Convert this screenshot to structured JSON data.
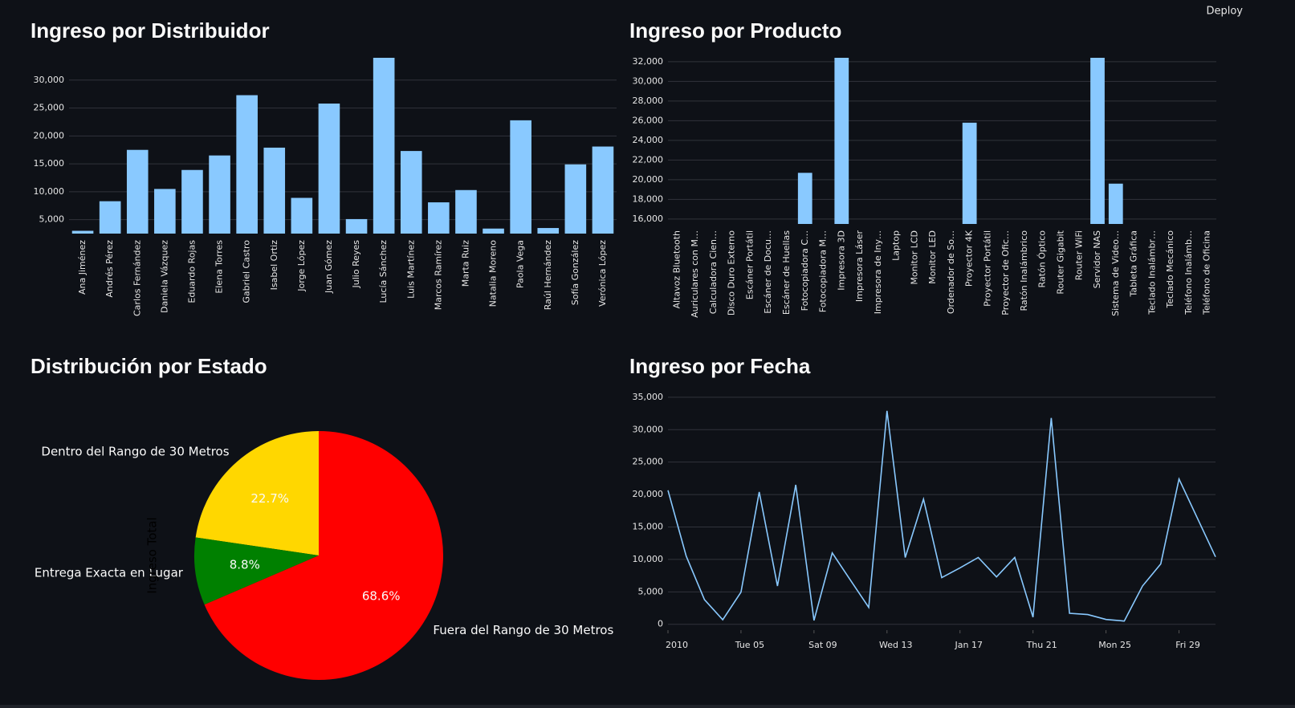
{
  "header": {
    "deploy": "Deploy"
  },
  "chart_data": [
    {
      "type": "bar",
      "title": "Ingreso por Distribuidor",
      "color": "#89c9ff",
      "grid": true,
      "categories": [
        "Ana Jiménez",
        "Andrés Pérez",
        "Carlos Fernández",
        "Daniela Vázquez",
        "Eduardo Rojas",
        "Elena Torres",
        "Gabriel Castro",
        "Isabel Ortiz",
        "Jorge López",
        "Juan Gómez",
        "Julio Reyes",
        "Lucía Sánchez",
        "Luis Martínez",
        "Marcos Ramírez",
        "Marta Ruiz",
        "Natalia Moreno",
        "Paola Vega",
        "Raúl Hernández",
        "Sofía González",
        "Verónica López"
      ],
      "values": [
        3000,
        8300,
        17500,
        10500,
        13900,
        16500,
        27300,
        17900,
        8900,
        25800,
        5100,
        34000,
        17300,
        8100,
        10300,
        3400,
        22800,
        3500,
        14900,
        18100
      ],
      "ylim": [
        2500,
        34000
      ],
      "yticks": [
        {
          "value": 5000,
          "label": "5,000"
        },
        {
          "value": 10000,
          "label": "10,000"
        },
        {
          "value": 15000,
          "label": "15,000"
        },
        {
          "value": 20000,
          "label": "20,000"
        },
        {
          "value": 25000,
          "label": "25,000"
        },
        {
          "value": 30000,
          "label": "30,000"
        }
      ]
    },
    {
      "type": "bar",
      "title": "Ingreso por Producto",
      "color": "#89c9ff",
      "grid": true,
      "categories": [
        "Altavoz Bluetooth",
        "Auriculares con M…",
        "Calculadora Cien…",
        "Disco Duro Externo",
        "Escáner Portátil",
        "Escáner de Docu…",
        "Escáner de Huellas",
        "Fotocopiadora C…",
        "Fotocopiadora M…",
        "Impresora 3D",
        "Impresora Láser",
        "Impresora de Iny…",
        "Laptop",
        "Monitor LCD",
        "Monitor LED",
        "Ordenador de So…",
        "Proyector 4K",
        "Proyector Portátil",
        "Proyector de Ofic…",
        "Ratón Inalámbrico",
        "Ratón Óptico",
        "Router Gigabit",
        "Router WiFi",
        "Servidor NAS",
        "Sistema de Video…",
        "Tableta Gráfica",
        "Teclado Inalámbr…",
        "Teclado Mecánico",
        "Teléfono Inalámb…",
        "Teléfono de Oficina"
      ],
      "values": [
        null,
        null,
        null,
        null,
        null,
        null,
        null,
        20700,
        null,
        32400,
        null,
        null,
        null,
        null,
        null,
        null,
        25800,
        null,
        null,
        null,
        null,
        null,
        null,
        32400,
        19600,
        null,
        null,
        null,
        null,
        null
      ],
      "ylim": [
        15500,
        32400
      ],
      "yticks": [
        {
          "value": 16000,
          "label": "16,000"
        },
        {
          "value": 18000,
          "label": "18,000"
        },
        {
          "value": 20000,
          "label": "20,000"
        },
        {
          "value": 22000,
          "label": "22,000"
        },
        {
          "value": 24000,
          "label": "24,000"
        },
        {
          "value": 26000,
          "label": "26,000"
        },
        {
          "value": 28000,
          "label": "28,000"
        },
        {
          "value": 30000,
          "label": "30,000"
        },
        {
          "value": 32000,
          "label": "32,000"
        }
      ]
    },
    {
      "type": "pie",
      "title": "Distribución por Estado",
      "ylabel": "Ingreso Total",
      "categories": [
        "Dentro del Rango de 30 Metros",
        "Entrega Exacta en Lugar",
        "Fuera del Rango de 30 Metros"
      ],
      "values": [
        22.7,
        8.8,
        68.6
      ],
      "value_labels": [
        "22.7%",
        "8.8%",
        "68.6%"
      ],
      "colors": [
        "#FFD700",
        "#008000",
        "#FF0000"
      ]
    },
    {
      "type": "line",
      "title": "Ingreso por Fecha",
      "color": "#89c9ff",
      "grid": true,
      "x": [
        "2010-01-01",
        "2010-01-02",
        "2010-01-03",
        "2010-01-04",
        "2010-01-05",
        "2010-01-06",
        "2010-01-07",
        "2010-01-08",
        "2010-01-09",
        "2010-01-10",
        "2010-01-11",
        "2010-01-12",
        "2010-01-13",
        "2010-01-14",
        "2010-01-15",
        "2010-01-16",
        "2010-01-17",
        "2010-01-18",
        "2010-01-19",
        "2010-01-20",
        "2010-01-21",
        "2010-01-22",
        "2010-01-23",
        "2010-01-24",
        "2010-01-25",
        "2010-01-26",
        "2010-01-27",
        "2010-01-28",
        "2010-01-29",
        "2010-01-30",
        "2010-01-31"
      ],
      "values": [
        20650,
        10500,
        3800,
        700,
        4950,
        20400,
        5900,
        21500,
        600,
        11000,
        6800,
        2600,
        32900,
        10300,
        19300,
        7200,
        8700,
        10300,
        7300,
        10300,
        1100,
        31800,
        1700,
        1500,
        750,
        500,
        5900,
        9300,
        22400,
        16400,
        10400
      ],
      "xlim": [
        "2010-01-01",
        "2010-01-31"
      ],
      "xticks": [
        {
          "value": "2010-01-01",
          "label": "2010"
        },
        {
          "value": "2010-01-05",
          "label": "Tue 05"
        },
        {
          "value": "2010-01-09",
          "label": "Sat 09"
        },
        {
          "value": "2010-01-13",
          "label": "Wed 13"
        },
        {
          "value": "2010-01-17",
          "label": "Jan 17"
        },
        {
          "value": "2010-01-21",
          "label": "Thu 21"
        },
        {
          "value": "2010-01-25",
          "label": "Mon 25"
        },
        {
          "value": "2010-01-29",
          "label": "Fri 29"
        }
      ],
      "ylim": [
        -900,
        35600
      ],
      "yticks": [
        0,
        {
          "value": 5000,
          "label": "5,000"
        },
        {
          "value": 10000,
          "label": "10,000"
        },
        {
          "value": 15000,
          "label": "15,000"
        },
        {
          "value": 20000,
          "label": "20,000"
        },
        {
          "value": 25000,
          "label": "25,000"
        },
        {
          "value": 30000,
          "label": "30,000"
        },
        {
          "value": 35000,
          "label": "35,000"
        }
      ]
    }
  ]
}
